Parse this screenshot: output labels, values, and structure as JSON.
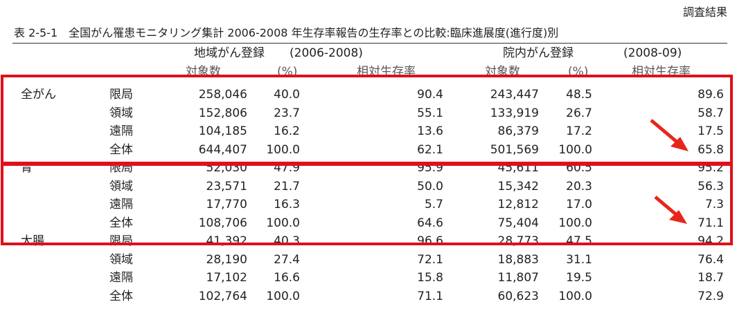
{
  "header": {
    "label": "調査結果",
    "title": "表 2-5-1　全国がん罹患モニタリング集計 2006-2008 年生存率報告の生存率との比較:臨床進展度(進行度)別"
  },
  "table": {
    "groups": [
      {
        "title": "地域がん登録",
        "period": "(2006-2008)"
      },
      {
        "title": "院内がん登録",
        "period": "(2008-09)"
      }
    ],
    "columns": [
      "対象数",
      "(%)",
      "相対生存率",
      "対象数",
      "(%)",
      "相対生存率"
    ],
    "sections": [
      {
        "site": "全がん",
        "rows": [
          {
            "stage": "限局",
            "cells": [
              "258,046",
              "40.0",
              "90.4",
              "243,447",
              "48.5",
              "89.6"
            ]
          },
          {
            "stage": "領域",
            "cells": [
              "152,806",
              "23.7",
              "55.1",
              "133,919",
              "26.7",
              "58.7"
            ]
          },
          {
            "stage": "遠隔",
            "cells": [
              "104,185",
              "16.2",
              "13.6",
              "86,379",
              "17.2",
              "17.5"
            ]
          },
          {
            "stage": "全体",
            "cells": [
              "644,407",
              "100.0",
              "62.1",
              "501,569",
              "100.0",
              "65.8"
            ]
          }
        ]
      },
      {
        "site": "胃",
        "rows": [
          {
            "stage": "限局",
            "cells": [
              "52,030",
              "47.9",
              "95.9",
              "45,611",
              "60.5",
              "95.2"
            ]
          },
          {
            "stage": "領域",
            "cells": [
              "23,571",
              "21.7",
              "50.0",
              "15,342",
              "20.3",
              "56.3"
            ]
          },
          {
            "stage": "遠隔",
            "cells": [
              "17,770",
              "16.3",
              "5.7",
              "12,812",
              "17.0",
              "7.3"
            ]
          },
          {
            "stage": "全体",
            "cells": [
              "108,706",
              "100.0",
              "64.6",
              "75,404",
              "100.0",
              "71.1"
            ]
          }
        ]
      },
      {
        "site": "大腸",
        "rows": [
          {
            "stage": "限局",
            "cells": [
              "41,392",
              "40.3",
              "96.6",
              "28,773",
              "47.5",
              "94.2"
            ]
          },
          {
            "stage": "領域",
            "cells": [
              "28,190",
              "27.4",
              "72.1",
              "18,883",
              "31.1",
              "76.4"
            ]
          },
          {
            "stage": "遠隔",
            "cells": [
              "17,102",
              "16.6",
              "15.8",
              "11,807",
              "19.5",
              "18.7"
            ]
          },
          {
            "stage": "全体",
            "cells": [
              "102,764",
              "100.0",
              "71.1",
              "60,623",
              "100.0",
              "72.9"
            ]
          }
        ]
      }
    ]
  }
}
